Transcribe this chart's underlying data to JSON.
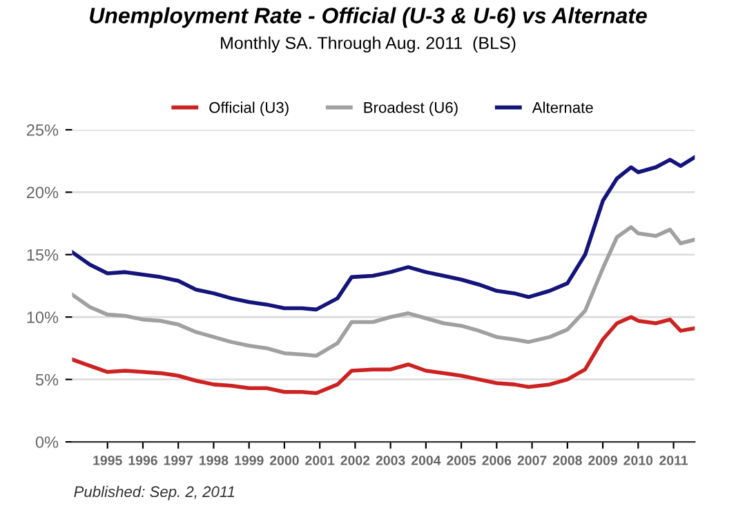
{
  "chart_data": {
    "type": "line",
    "title": "Unemployment Rate - Official (U-3 & U-6) vs Alternate",
    "subtitle": "Monthly SA. Through Aug. 2011  (BLS)",
    "x": [
      1994.0,
      1994.5,
      1995.0,
      1995.5,
      1996.0,
      1996.5,
      1997.0,
      1997.5,
      1998.0,
      1998.5,
      1999.0,
      1999.5,
      2000.0,
      2000.5,
      2000.9,
      2001.5,
      2001.9,
      2002.5,
      2003.0,
      2003.5,
      2004.0,
      2004.5,
      2005.0,
      2005.5,
      2006.0,
      2006.5,
      2006.9,
      2007.5,
      2008.0,
      2008.5,
      2009.0,
      2009.4,
      2009.8,
      2010.0,
      2010.5,
      2010.9,
      2011.2,
      2011.6
    ],
    "series": [
      {
        "name": "Official (U3)",
        "color": "#cc2222",
        "values": [
          6.6,
          6.1,
          5.6,
          5.7,
          5.6,
          5.5,
          5.3,
          4.9,
          4.6,
          4.5,
          4.3,
          4.3,
          4.0,
          4.0,
          3.9,
          4.6,
          5.7,
          5.8,
          5.8,
          6.2,
          5.7,
          5.5,
          5.3,
          5.0,
          4.7,
          4.6,
          4.4,
          4.6,
          5.0,
          5.8,
          8.2,
          9.5,
          10.0,
          9.7,
          9.5,
          9.8,
          8.9,
          9.1
        ]
      },
      {
        "name": "Broadest (U6)",
        "color": "#a0a0a0",
        "values": [
          11.8,
          10.8,
          10.2,
          10.1,
          9.8,
          9.7,
          9.4,
          8.8,
          8.4,
          8.0,
          7.7,
          7.5,
          7.1,
          7.0,
          6.9,
          7.9,
          9.6,
          9.6,
          10.0,
          10.3,
          9.9,
          9.5,
          9.3,
          8.9,
          8.4,
          8.2,
          8.0,
          8.4,
          9.0,
          10.5,
          13.9,
          16.4,
          17.2,
          16.7,
          16.5,
          17.0,
          15.9,
          16.2
        ]
      },
      {
        "name": "Alternate",
        "color": "#14147a",
        "values": [
          15.2,
          14.2,
          13.5,
          13.6,
          13.4,
          13.2,
          12.9,
          12.2,
          11.9,
          11.5,
          11.2,
          11.0,
          10.7,
          10.7,
          10.6,
          11.5,
          13.2,
          13.3,
          13.6,
          14.0,
          13.6,
          13.3,
          13.0,
          12.6,
          12.1,
          11.9,
          11.6,
          12.1,
          12.7,
          15.0,
          19.3,
          21.1,
          22.0,
          21.6,
          22.0,
          22.6,
          22.1,
          22.8
        ]
      }
    ],
    "xlim": [
      1994.0,
      2011.6
    ],
    "xticks": [
      1995,
      1996,
      1997,
      1998,
      1999,
      2000,
      2001,
      2002,
      2003,
      2004,
      2005,
      2006,
      2007,
      2008,
      2009,
      2010,
      2011
    ],
    "ylim": [
      0,
      25
    ],
    "yticks": [
      {
        "value": 0,
        "label": "0%"
      },
      {
        "value": 5,
        "label": "5%"
      },
      {
        "value": 10,
        "label": "10%"
      },
      {
        "value": 15,
        "label": "15%"
      },
      {
        "value": 20,
        "label": "20%"
      },
      {
        "value": 25,
        "label": "25%"
      }
    ],
    "grid": "y",
    "legend": "top",
    "line_style": "solid",
    "marker": "none",
    "annotations": [
      "Published: Sep. 2, 2011"
    ]
  }
}
